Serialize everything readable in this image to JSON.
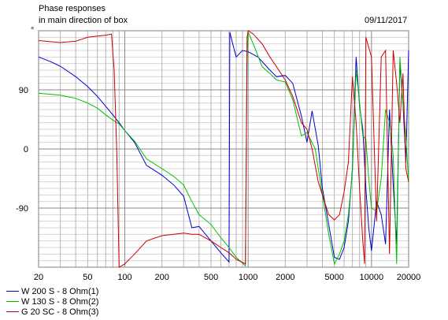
{
  "header": {
    "title_line1": "Phase responses",
    "title_line2": "in main direction of box",
    "date": "09/11/2017",
    "axis_unit_mark": "°"
  },
  "legend": [
    {
      "label": "W 200 S - 8 Ohm(1)",
      "color": "#0000cc"
    },
    {
      "label": "W 130 S - 8 Ohm(2)",
      "color": "#00c000"
    },
    {
      "label": "G 20 SC - 8 Ohm(3)",
      "color": "#cc0000"
    }
  ],
  "chart_data": {
    "type": "line",
    "x_scale": "log",
    "xlim": [
      20,
      20000
    ],
    "ylim": [
      -180,
      180
    ],
    "grid": true,
    "x_ticks": [
      {
        "value": 20,
        "label": "20"
      },
      {
        "value": 50,
        "label": "50"
      },
      {
        "value": 100,
        "label": "100"
      },
      {
        "value": 200,
        "label": "200"
      },
      {
        "value": 500,
        "label": "500"
      },
      {
        "value": 1000,
        "label": "1000"
      },
      {
        "value": 2000,
        "label": "2000"
      },
      {
        "value": 5000,
        "label": "5000"
      },
      {
        "value": 10000,
        "label": "10000"
      },
      {
        "value": 20000,
        "label": "20000"
      }
    ],
    "y_ticks": [
      {
        "value": 90,
        "label": "90"
      },
      {
        "value": 0,
        "label": "0"
      },
      {
        "value": -90,
        "label": "-90"
      }
    ],
    "series": [
      {
        "name": "W 200 S - 8 Ohm(1)",
        "color": "#0000cc",
        "points": [
          [
            20,
            140
          ],
          [
            25,
            133
          ],
          [
            30,
            126
          ],
          [
            40,
            110
          ],
          [
            50,
            95
          ],
          [
            60,
            80
          ],
          [
            70,
            65
          ],
          [
            80,
            52
          ],
          [
            90,
            40
          ],
          [
            100,
            28
          ],
          [
            120,
            10
          ],
          [
            150,
            -25
          ],
          [
            200,
            -40
          ],
          [
            250,
            -55
          ],
          [
            300,
            -72
          ],
          [
            350,
            -120
          ],
          [
            400,
            -118
          ],
          [
            500,
            -140
          ],
          [
            600,
            -158
          ],
          [
            700,
            -172
          ],
          [
            710,
            178
          ],
          [
            750,
            160
          ],
          [
            800,
            140
          ],
          [
            900,
            150
          ],
          [
            1000,
            148
          ],
          [
            1200,
            140
          ],
          [
            1500,
            120
          ],
          [
            1700,
            110
          ],
          [
            2000,
            112
          ],
          [
            2300,
            100
          ],
          [
            2700,
            50
          ],
          [
            3000,
            10
          ],
          [
            3300,
            58
          ],
          [
            3700,
            5
          ],
          [
            4000,
            -60
          ],
          [
            4500,
            -115
          ],
          [
            5000,
            -165
          ],
          [
            5500,
            -168
          ],
          [
            6000,
            -150
          ],
          [
            6500,
            -110
          ],
          [
            7000,
            -30
          ],
          [
            7500,
            140
          ],
          [
            8000,
            65
          ],
          [
            8500,
            30
          ],
          [
            9000,
            -60
          ],
          [
            9500,
            -120
          ],
          [
            10000,
            -155
          ],
          [
            11000,
            -80
          ],
          [
            12000,
            -100
          ],
          [
            13000,
            -145
          ],
          [
            14000,
            60
          ],
          [
            15000,
            -55
          ],
          [
            16000,
            -145
          ],
          [
            17000,
            130
          ],
          [
            18000,
            70
          ],
          [
            19000,
            -20
          ],
          [
            20000,
            150
          ]
        ]
      },
      {
        "name": "W 130 S - 8 Ohm(2)",
        "color": "#00c000",
        "points": [
          [
            20,
            85
          ],
          [
            30,
            82
          ],
          [
            40,
            77
          ],
          [
            50,
            70
          ],
          [
            60,
            62
          ],
          [
            70,
            52
          ],
          [
            80,
            44
          ],
          [
            90,
            38
          ],
          [
            100,
            28
          ],
          [
            120,
            12
          ],
          [
            150,
            -15
          ],
          [
            200,
            -30
          ],
          [
            250,
            -42
          ],
          [
            300,
            -55
          ],
          [
            350,
            -80
          ],
          [
            400,
            -100
          ],
          [
            500,
            -115
          ],
          [
            600,
            -135
          ],
          [
            700,
            -150
          ],
          [
            800,
            -165
          ],
          [
            950,
            -178
          ],
          [
            980,
            140
          ],
          [
            1000,
            178
          ],
          [
            1100,
            160
          ],
          [
            1300,
            125
          ],
          [
            1500,
            115
          ],
          [
            1700,
            105
          ],
          [
            2000,
            102
          ],
          [
            2300,
            75
          ],
          [
            2700,
            20
          ],
          [
            3000,
            25
          ],
          [
            3500,
            0
          ],
          [
            4000,
            -70
          ],
          [
            4500,
            -130
          ],
          [
            5000,
            -175
          ],
          [
            5500,
            -160
          ],
          [
            6000,
            -140
          ],
          [
            6500,
            -100
          ],
          [
            7000,
            -35
          ],
          [
            7500,
            120
          ],
          [
            8000,
            70
          ],
          [
            8500,
            20
          ],
          [
            9000,
            15
          ],
          [
            9500,
            -45
          ],
          [
            10000,
            -90
          ],
          [
            11000,
            -95
          ],
          [
            12000,
            -45
          ],
          [
            13000,
            60
          ],
          [
            14000,
            40
          ],
          [
            15000,
            -10
          ],
          [
            16000,
            -175
          ],
          [
            17000,
            140
          ],
          [
            18000,
            70
          ],
          [
            19000,
            20
          ],
          [
            20000,
            -50
          ]
        ]
      },
      {
        "name": "G 20 SC - 8 Ohm(3)",
        "color": "#cc0000",
        "points": [
          [
            20,
            165
          ],
          [
            30,
            162
          ],
          [
            40,
            164
          ],
          [
            50,
            170
          ],
          [
            60,
            172
          ],
          [
            70,
            173
          ],
          [
            78,
            175
          ],
          [
            82,
            120
          ],
          [
            86,
            0
          ],
          [
            90,
            -180
          ],
          [
            100,
            -175
          ],
          [
            120,
            -160
          ],
          [
            150,
            -140
          ],
          [
            200,
            -132
          ],
          [
            250,
            -130
          ],
          [
            300,
            -128
          ],
          [
            350,
            -130
          ],
          [
            400,
            -130
          ],
          [
            500,
            -140
          ],
          [
            600,
            -150
          ],
          [
            700,
            -158
          ],
          [
            800,
            -168
          ],
          [
            950,
            -175
          ],
          [
            980,
            170
          ],
          [
            1000,
            180
          ],
          [
            1100,
            175
          ],
          [
            1300,
            160
          ],
          [
            1500,
            140
          ],
          [
            1700,
            125
          ],
          [
            2000,
            105
          ],
          [
            2300,
            80
          ],
          [
            2700,
            40
          ],
          [
            3000,
            30
          ],
          [
            3300,
            0
          ],
          [
            3700,
            -50
          ],
          [
            4000,
            -70
          ],
          [
            4500,
            -100
          ],
          [
            5000,
            -108
          ],
          [
            5500,
            -100
          ],
          [
            6000,
            -65
          ],
          [
            6500,
            -20
          ],
          [
            7000,
            110
          ],
          [
            7500,
            40
          ],
          [
            8000,
            -60
          ],
          [
            8500,
            -140
          ],
          [
            8800,
            -175
          ],
          [
            9000,
            170
          ],
          [
            10000,
            140
          ],
          [
            11000,
            -110
          ],
          [
            12000,
            140
          ],
          [
            13000,
            150
          ],
          [
            14000,
            -160
          ],
          [
            15000,
            150
          ],
          [
            16000,
            100
          ],
          [
            17000,
            40
          ],
          [
            18000,
            115
          ],
          [
            19000,
            -30
          ],
          [
            20000,
            -50
          ]
        ]
      }
    ]
  }
}
